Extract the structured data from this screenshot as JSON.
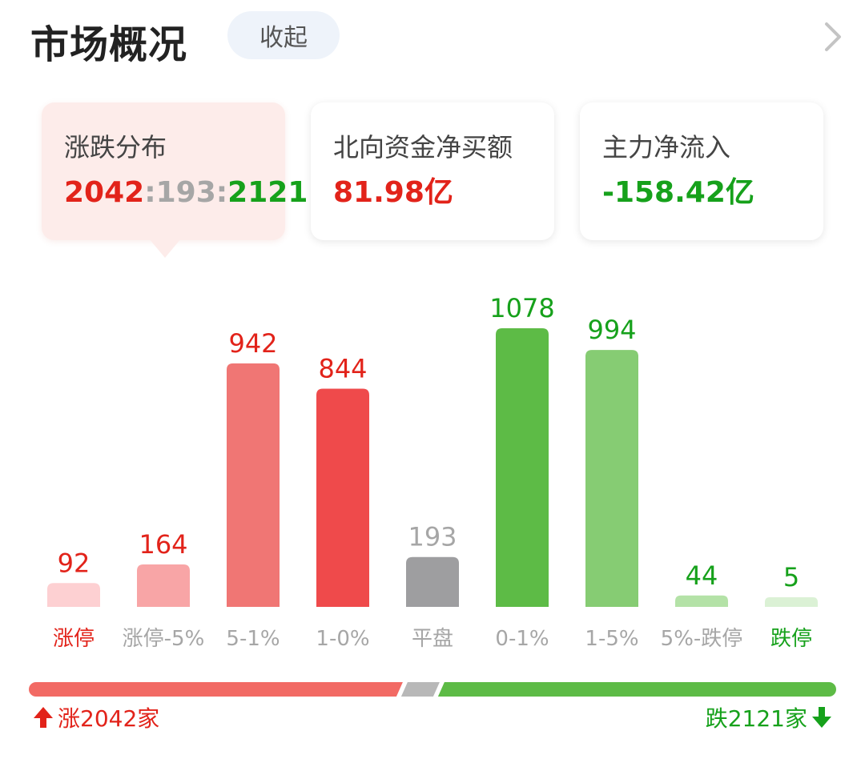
{
  "header": {
    "title": "市场概况",
    "collapse_label": "收起"
  },
  "cards": [
    {
      "label": "涨跌分布",
      "ratio": {
        "up": "2042",
        "sep1": ":",
        "flat": "193",
        "sep2": ":",
        "down": "2121"
      }
    },
    {
      "label": "北向资金净买额",
      "value": "81.98亿"
    },
    {
      "label": "主力净流入",
      "value": "-158.42亿"
    }
  ],
  "chart_data": {
    "type": "bar",
    "categories": [
      "涨停",
      "涨停-5%",
      "5-1%",
      "1-0%",
      "平盘",
      "0-1%",
      "1-5%",
      "5%-跌停",
      "跌停"
    ],
    "values": [
      92,
      164,
      942,
      844,
      193,
      1078,
      994,
      44,
      5
    ],
    "colors": [
      "#fdd0d2",
      "#f8a5a6",
      "#f07674",
      "#ef4a4b",
      "#9e9ea0",
      "#5dbb46",
      "#86cc73",
      "#b4e2a7",
      "#dbf1d5"
    ],
    "value_label_colors": [
      "#e2231a",
      "#e2231a",
      "#e2231a",
      "#e2231a",
      "#a6a6a6",
      "#16a11b",
      "#16a11b",
      "#16a11b",
      "#16a11b"
    ],
    "category_label_colors": [
      "#e2231a",
      "#a6a6a6",
      "#a6a6a6",
      "#a6a6a6",
      "#a6a6a6",
      "#a6a6a6",
      "#a6a6a6",
      "#a6a6a6",
      "#16a11b"
    ],
    "ylim": [
      0,
      1078
    ]
  },
  "breadth": {
    "up": 2042,
    "flat": 193,
    "down": 2121,
    "colors": {
      "up": "#f26a64",
      "flat": "#b8b8b8",
      "down": "#5dbb46"
    }
  },
  "footer": {
    "up_label": "涨2042家",
    "down_label": "跌2121家"
  }
}
